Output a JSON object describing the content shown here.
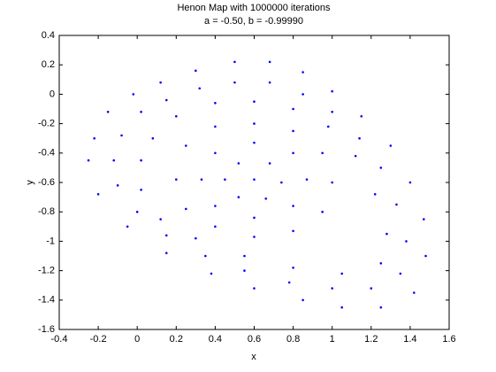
{
  "chart_data": {
    "type": "scatter",
    "title": "Henon Map with 1000000 iterations",
    "subtitle": "a = -0.50, b = -0.99990",
    "x_label": "x",
    "y_label": "y",
    "color": "#0000ff",
    "xlim": [
      -0.4,
      1.6
    ],
    "ylim": [
      -1.6,
      0.4
    ],
    "xticks": [
      -0.4,
      -0.2,
      0,
      0.2,
      0.4,
      0.6,
      0.8,
      1,
      1.2,
      1.4,
      1.6
    ],
    "yticks": [
      -1.6,
      -1.4,
      -1.2,
      -1,
      -0.8,
      -0.6,
      -0.4,
      -0.2,
      0,
      0.2,
      0.4
    ],
    "x": [
      -0.25,
      -0.22,
      -0.15,
      -0.02,
      0.12,
      0.3,
      0.5,
      0.68,
      0.85,
      1.0,
      1.15,
      1.3,
      1.4,
      1.47,
      1.48,
      1.42,
      1.25,
      1.05,
      0.85,
      0.6,
      0.38,
      0.15,
      -0.05,
      -0.2,
      -0.12,
      -0.08,
      0.02,
      0.15,
      0.32,
      0.5,
      0.68,
      0.85,
      1.0,
      1.14,
      1.25,
      1.33,
      1.38,
      1.35,
      1.2,
      1.0,
      0.78,
      0.55,
      0.35,
      0.15,
      0.0,
      -0.1,
      0.02,
      0.08,
      0.2,
      0.4,
      0.6,
      0.8,
      0.98,
      1.12,
      1.22,
      1.28,
      1.25,
      1.05,
      0.8,
      0.55,
      0.3,
      0.12,
      0.02,
      0.2,
      0.25,
      0.4,
      0.6,
      0.8,
      0.95,
      1.0,
      0.95,
      0.8,
      0.6,
      0.4,
      0.25,
      0.33,
      0.4,
      0.6,
      0.8,
      0.87,
      0.8,
      0.6,
      0.4,
      0.45,
      0.52,
      0.68,
      0.74,
      0.66,
      0.52,
      0.6
    ],
    "values": [
      -0.45,
      -0.3,
      -0.12,
      0.0,
      0.08,
      0.16,
      0.22,
      0.22,
      0.15,
      0.02,
      -0.15,
      -0.35,
      -0.6,
      -0.85,
      -1.1,
      -1.35,
      -1.45,
      -1.45,
      -1.4,
      -1.32,
      -1.22,
      -1.08,
      -0.9,
      -0.68,
      -0.45,
      -0.28,
      -0.12,
      -0.04,
      0.04,
      0.08,
      0.08,
      0.0,
      -0.12,
      -0.3,
      -0.5,
      -0.75,
      -1.0,
      -1.22,
      -1.32,
      -1.32,
      -1.28,
      -1.2,
      -1.1,
      -0.96,
      -0.8,
      -0.62,
      -0.45,
      -0.3,
      -0.15,
      -0.06,
      -0.05,
      -0.1,
      -0.22,
      -0.42,
      -0.68,
      -0.95,
      -1.15,
      -1.22,
      -1.18,
      -1.1,
      -0.98,
      -0.85,
      -0.65,
      -0.58,
      -0.35,
      -0.22,
      -0.2,
      -0.25,
      -0.4,
      -0.6,
      -0.8,
      -0.93,
      -0.97,
      -0.9,
      -0.78,
      -0.58,
      -0.4,
      -0.33,
      -0.4,
      -0.58,
      -0.76,
      -0.84,
      -0.76,
      -0.58,
      -0.47,
      -0.47,
      -0.6,
      -0.71,
      -0.7,
      -0.58
    ]
  }
}
